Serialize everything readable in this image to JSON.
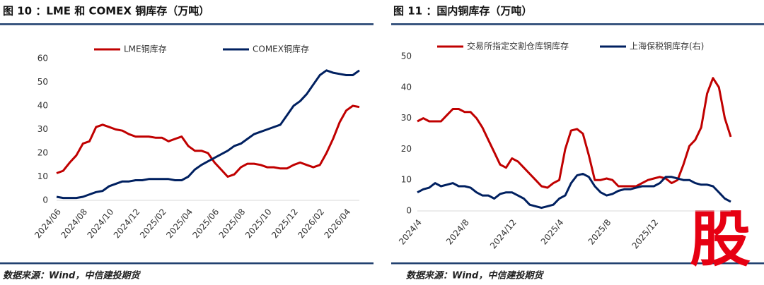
{
  "watermark": "股",
  "chart_data": [
    {
      "type": "line",
      "title": "图 10 ：LME 和 COMEX 铜库存（万吨）",
      "source": "数据来源：Wind，中信建投期货",
      "categories": [
        "2024/06",
        null,
        null,
        null,
        "2024/08",
        null,
        null,
        null,
        "2024/10",
        null,
        null,
        null,
        "2024/12",
        null,
        null,
        null,
        "2025/02",
        null,
        null,
        null,
        "2025/04",
        null,
        null,
        null,
        "2025/06",
        null,
        null,
        null,
        "2025/08",
        null,
        null,
        null,
        "2025/10",
        null,
        null,
        null,
        "2025/12",
        null,
        null,
        null,
        "2026/02",
        null,
        null,
        null,
        "2026/04",
        null,
        null
      ],
      "series": [
        {
          "name": "LME铜库存",
          "color": "#c00000",
          "values": [
            11.5,
            12.5,
            16,
            19,
            24,
            25,
            31,
            32,
            31,
            30,
            29.5,
            28,
            27,
            27,
            27,
            26.5,
            26.5,
            25,
            26,
            27,
            23,
            21,
            21,
            20,
            16,
            13,
            10,
            11,
            14,
            15.5,
            15.5,
            15,
            14,
            14,
            13.5,
            13.5,
            15,
            16,
            15,
            14,
            15,
            20,
            26,
            33,
            38,
            40,
            39.5
          ]
        },
        {
          "name": "COMEX铜库存",
          "color": "#002060",
          "values": [
            1.5,
            1,
            1,
            1,
            1.5,
            2.5,
            3.5,
            4,
            6,
            7,
            8,
            8,
            8.5,
            8.5,
            9,
            9,
            9,
            9,
            8.5,
            8.5,
            10,
            13,
            15,
            16.5,
            18,
            19.5,
            21,
            23,
            24,
            26,
            28,
            29,
            30,
            31,
            32,
            36,
            40,
            42,
            45,
            49,
            53,
            55,
            54,
            53.5,
            53,
            53,
            55
          ]
        }
      ],
      "ylim": [
        0,
        60
      ],
      "yticks": [
        0,
        10,
        20,
        30,
        40,
        50,
        60
      ]
    },
    {
      "type": "line",
      "title": "图 11 ：国内铜库存（万吨）",
      "source": "数据来源：Wind，中信建投期货",
      "categories": [
        "2024/4",
        null,
        null,
        null,
        null,
        null,
        null,
        null,
        "2024/8",
        null,
        null,
        null,
        null,
        null,
        null,
        null,
        "2024/12",
        null,
        null,
        null,
        null,
        null,
        null,
        null,
        "2025/4",
        null,
        null,
        null,
        null,
        null,
        null,
        null,
        "2025/8",
        null,
        null,
        null,
        null,
        null,
        null,
        null,
        "2025/12",
        null,
        null,
        null,
        null,
        null,
        null,
        null,
        null,
        null,
        null,
        null,
        null,
        null
      ],
      "series": [
        {
          "name": "交易所指定交割仓库铜库存",
          "color": "#c00000",
          "values": [
            29,
            30,
            29,
            29,
            29,
            31,
            33,
            33,
            32,
            32,
            30,
            27,
            23,
            19,
            15,
            14,
            17,
            16,
            14,
            12,
            10,
            8,
            7.5,
            9,
            10,
            20,
            26,
            26.5,
            25,
            18,
            10,
            10,
            10.5,
            10,
            8,
            8,
            8,
            8,
            9,
            10,
            10.5,
            11,
            10.5,
            9,
            10,
            15,
            21,
            23,
            27,
            38,
            43,
            40,
            30,
            24
          ]
        },
        {
          "name": "上海保税铜库存(右)",
          "color": "#002060",
          "values": [
            6,
            7,
            7.5,
            9,
            8,
            8.5,
            9,
            8,
            8,
            7.5,
            6,
            5,
            5,
            4,
            5.5,
            6,
            6,
            5,
            4,
            2,
            1.5,
            1,
            1.5,
            2,
            4,
            5,
            9,
            11.5,
            12,
            11,
            8,
            6,
            5,
            5.5,
            6.5,
            7,
            7,
            7.5,
            8,
            8,
            8,
            9,
            11,
            11,
            10.5,
            10,
            10,
            9,
            8.5,
            8.5,
            8,
            6,
            4,
            3
          ]
        }
      ],
      "ylim": [
        0,
        50
      ],
      "yticks": [
        0,
        10,
        20,
        30,
        40,
        50
      ]
    }
  ]
}
